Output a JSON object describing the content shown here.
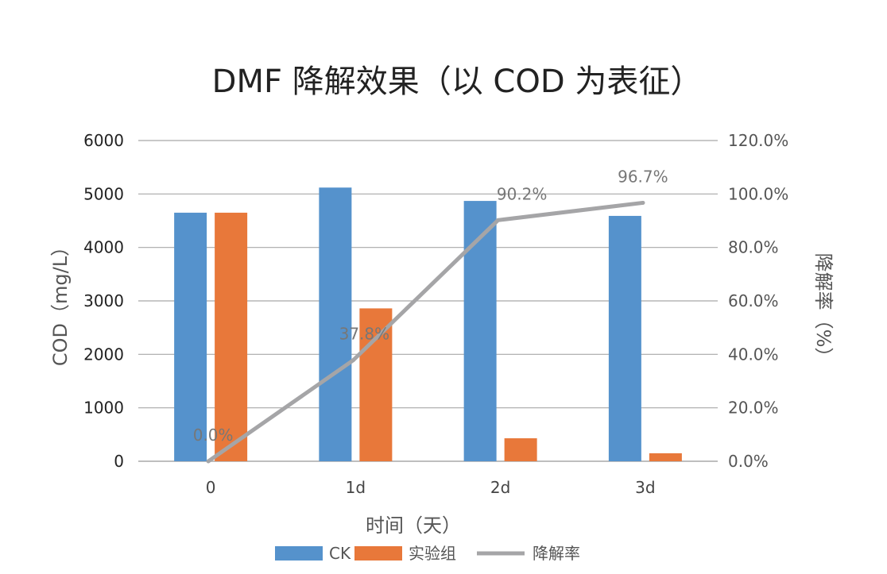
{
  "chart_data": {
    "type": "bar",
    "title": "DMF 降解效果（以 COD 为表征）",
    "categories": [
      "0",
      "1d",
      "2d",
      "3d"
    ],
    "xlabel": "时间（天）",
    "ylabel": "COD（mg/L）",
    "y2label": "降解率（%）",
    "ylim": [
      0,
      6000
    ],
    "yticks": [
      "0",
      "1000",
      "2000",
      "3000",
      "4000",
      "5000",
      "6000"
    ],
    "y2lim": [
      0,
      120
    ],
    "y2ticks": [
      "0.0%",
      "20.0%",
      "40.0%",
      "60.0%",
      "80.0%",
      "100.0%",
      "120.0%"
    ],
    "grid": true,
    "legend_position": "bottom",
    "series": [
      {
        "name": "CK",
        "kind": "bar",
        "axis": "left",
        "color": "#5592CC",
        "values": [
          4650,
          5120,
          4870,
          4590
        ]
      },
      {
        "name": "实验组",
        "kind": "bar",
        "axis": "left",
        "color": "#E8783A",
        "values": [
          4650,
          2860,
          430,
          150
        ]
      },
      {
        "name": "降解率",
        "kind": "line",
        "axis": "right",
        "color": "#A5A5A7",
        "values": [
          0.0,
          37.8,
          90.2,
          96.7
        ],
        "labels": [
          "0.0%",
          "37.8%",
          "90.2%",
          "96.7%"
        ]
      }
    ]
  }
}
